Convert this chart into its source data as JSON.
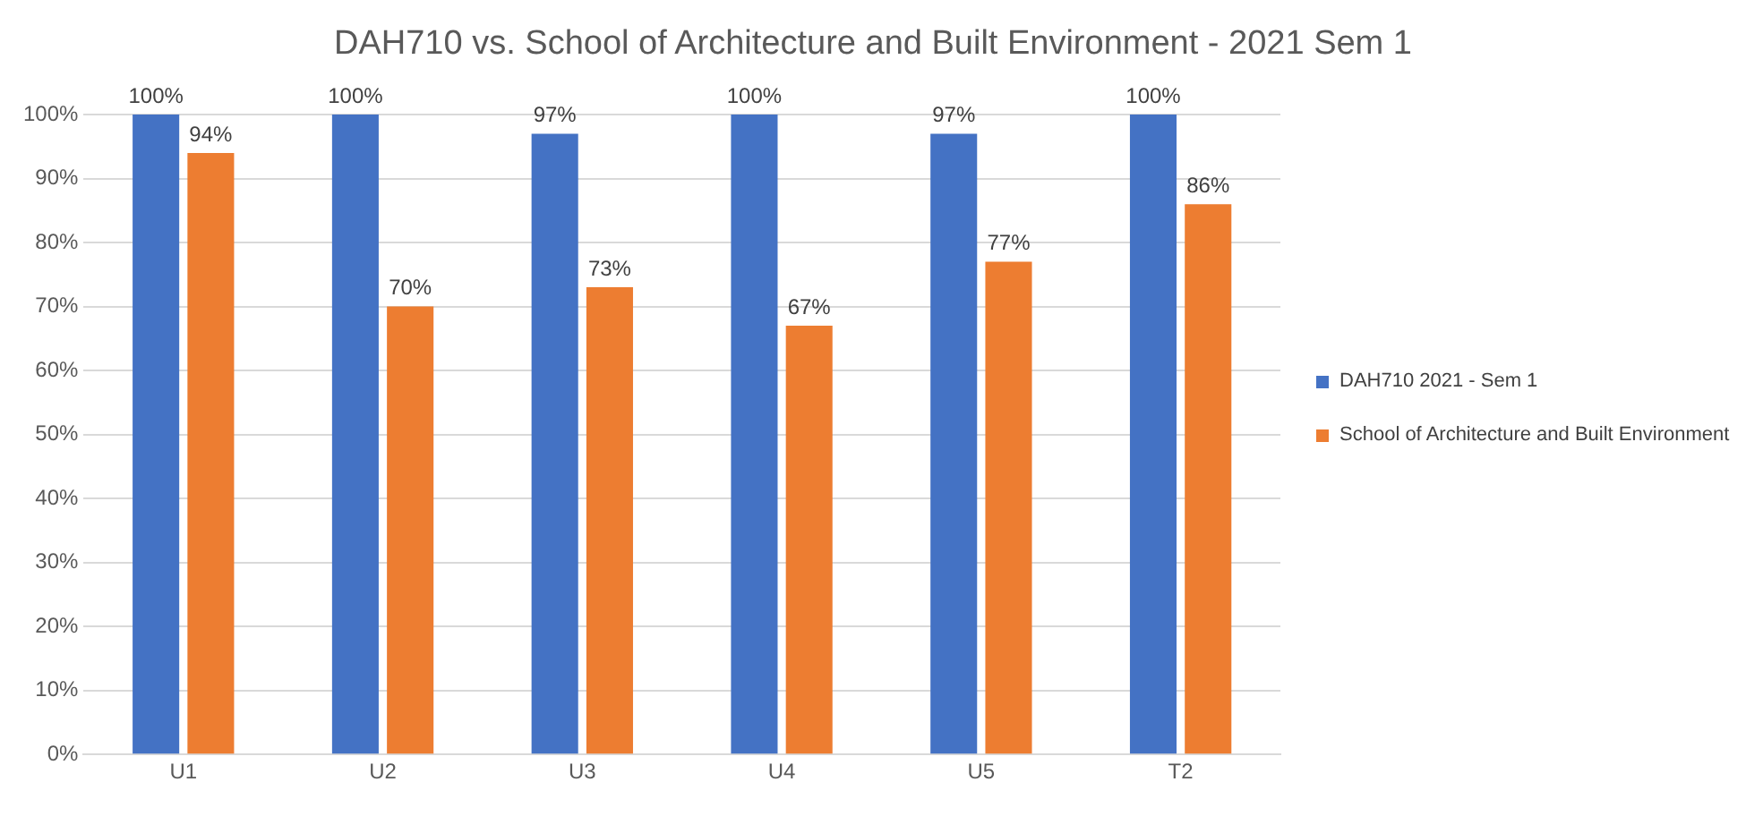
{
  "chart_data": {
    "type": "bar",
    "title": "DAH710 vs. School of Architecture and Built Environment - 2021 Sem 1",
    "categories": [
      "U1",
      "U2",
      "U3",
      "U4",
      "U5",
      "T2"
    ],
    "series": [
      {
        "name": "DAH710 2021 - Sem 1",
        "color": "#4472c4",
        "values": [
          100,
          100,
          97,
          100,
          97,
          100
        ],
        "value_labels": [
          "100%",
          "100%",
          "97%",
          "100%",
          "97%",
          "100%"
        ]
      },
      {
        "name": "School of Architecture and Built Environment",
        "color": "#ed7d31",
        "values": [
          94,
          70,
          73,
          67,
          77,
          86
        ],
        "value_labels": [
          "94%",
          "70%",
          "73%",
          "67%",
          "77%",
          "86%"
        ]
      }
    ],
    "ylim": [
      0,
      100
    ],
    "yticks": [
      {
        "value": 0,
        "label": "0%"
      },
      {
        "value": 10,
        "label": "10%"
      },
      {
        "value": 20,
        "label": "20%"
      },
      {
        "value": 30,
        "label": "30%"
      },
      {
        "value": 40,
        "label": "40%"
      },
      {
        "value": 50,
        "label": "50%"
      },
      {
        "value": 60,
        "label": "60%"
      },
      {
        "value": 70,
        "label": "70%"
      },
      {
        "value": 80,
        "label": "80%"
      },
      {
        "value": 90,
        "label": "90%"
      },
      {
        "value": 100,
        "label": "100%"
      }
    ],
    "grid": "y",
    "legend": "right"
  }
}
